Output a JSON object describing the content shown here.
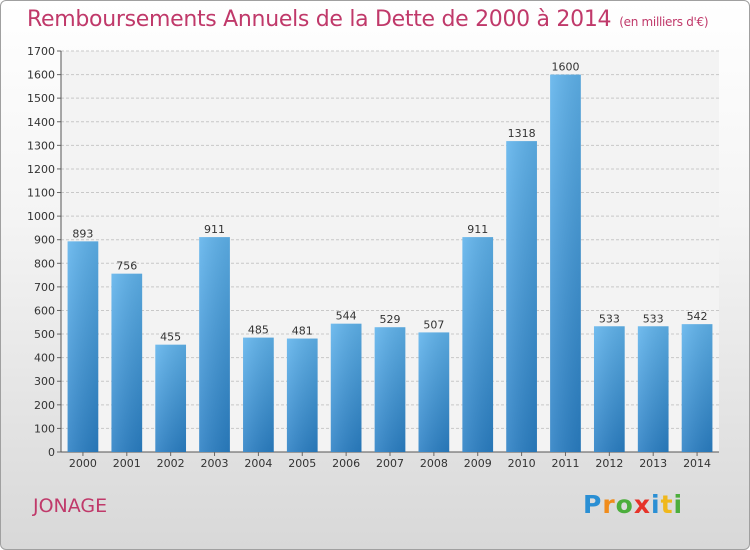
{
  "chart_data": {
    "type": "bar",
    "title": "Remboursements Annuels de la Dette de 2000 à 2014",
    "unit_note": "(en milliers d'€)",
    "categories": [
      "2000",
      "2001",
      "2002",
      "2003",
      "2004",
      "2005",
      "2006",
      "2007",
      "2008",
      "2009",
      "2010",
      "2011",
      "2012",
      "2013",
      "2014"
    ],
    "values": [
      893,
      756,
      455,
      911,
      485,
      481,
      544,
      529,
      507,
      911,
      1318,
      1600,
      533,
      533,
      542
    ],
    "ylim": [
      0,
      1700
    ],
    "yticks": [
      0,
      100,
      200,
      300,
      400,
      500,
      600,
      700,
      800,
      900,
      1000,
      1100,
      1200,
      1300,
      1400,
      1500,
      1600,
      1700
    ],
    "xlabel": "",
    "ylabel": "",
    "grid": true
  },
  "commune_name": "JONAGE",
  "brand": {
    "letters": [
      "P",
      "r",
      "o",
      "x",
      "i",
      "t",
      "i"
    ],
    "colors": [
      "#2a8fd4",
      "#f08c1c",
      "#4cae3c",
      "#e6332a",
      "#2a8fd4",
      "#f0b81c",
      "#4cae3c"
    ]
  },
  "colors": {
    "title": "#c0396a",
    "bar_top": "#5fb3ec",
    "bar_bottom": "#2a7fc4"
  }
}
